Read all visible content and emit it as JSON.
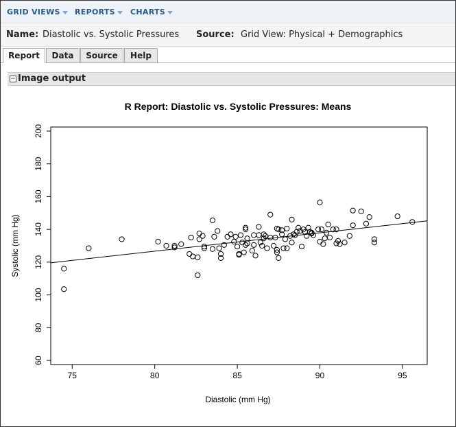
{
  "topnav": {
    "items": [
      {
        "label": "GRID VIEWS"
      },
      {
        "label": "REPORTS"
      },
      {
        "label": "CHARTS"
      }
    ]
  },
  "info": {
    "name_label": "Name:",
    "name_value": "Diastolic vs. Systolic Pressures",
    "source_label": "Source:",
    "source_value": "Grid View: Physical + Demographics"
  },
  "tabs": [
    {
      "label": "Report",
      "active": true
    },
    {
      "label": "Data",
      "active": false
    },
    {
      "label": "Source",
      "active": false
    },
    {
      "label": "Help",
      "active": false
    }
  ],
  "section": {
    "toggle": "−",
    "title": "Image output"
  },
  "chart_data": {
    "type": "scatter",
    "title": "R Report: Diastolic vs. Systolic Pressures: Means",
    "xlabel": "Diastolic (mm Hg)",
    "ylabel": "Systolic (mm Hg)",
    "xlim": [
      73.7,
      96.5
    ],
    "ylim": [
      57.5,
      202.5
    ],
    "xticks": [
      75,
      80,
      85,
      90,
      95
    ],
    "yticks": [
      60,
      80,
      100,
      120,
      140,
      160,
      180,
      200
    ],
    "grid": false,
    "trendline": {
      "x1": 73.7,
      "y1": 119.6,
      "x2": 96.5,
      "y2": 145.2
    },
    "points": [
      [
        74.5,
        116
      ],
      [
        74.5,
        103.5
      ],
      [
        76,
        128.5
      ],
      [
        78,
        134
      ],
      [
        80.2,
        132.5
      ],
      [
        80.7,
        130
      ],
      [
        81.2,
        129
      ],
      [
        81.2,
        130
      ],
      [
        81.6,
        131
      ],
      [
        82.1,
        125
      ],
      [
        82.2,
        135
      ],
      [
        82.3,
        123.5
      ],
      [
        82.6,
        112
      ],
      [
        82.6,
        123
      ],
      [
        82.7,
        137.5
      ],
      [
        82.7,
        134
      ],
      [
        82.9,
        136
      ],
      [
        83,
        129.5
      ],
      [
        83,
        128.5
      ],
      [
        83.5,
        145.5
      ],
      [
        83.5,
        128
      ],
      [
        83.6,
        135.5
      ],
      [
        83.8,
        139
      ],
      [
        83.9,
        128.5
      ],
      [
        84,
        125
      ],
      [
        84,
        122.5
      ],
      [
        84.2,
        130.5
      ],
      [
        84.4,
        135.5
      ],
      [
        84.6,
        137
      ],
      [
        84.8,
        132.5
      ],
      [
        84.9,
        135.5
      ],
      [
        85,
        129.5
      ],
      [
        85.1,
        124.5
      ],
      [
        85.1,
        125
      ],
      [
        85.2,
        136.5
      ],
      [
        85.3,
        132
      ],
      [
        85.4,
        126
      ],
      [
        85.5,
        140
      ],
      [
        85.5,
        141
      ],
      [
        85.5,
        130.5
      ],
      [
        85.6,
        134.5
      ],
      [
        85.6,
        131.5
      ],
      [
        85.9,
        127
      ],
      [
        86,
        136.5
      ],
      [
        86,
        130.5
      ],
      [
        86.1,
        124
      ],
      [
        86.3,
        141.5
      ],
      [
        86.3,
        136.5
      ],
      [
        86.4,
        132
      ],
      [
        86.5,
        130
      ],
      [
        86.6,
        137
      ],
      [
        86.6,
        134.5
      ],
      [
        86.7,
        136
      ],
      [
        86.8,
        128.5
      ],
      [
        87,
        135
      ],
      [
        87,
        149
      ],
      [
        87.2,
        130
      ],
      [
        87.3,
        135
      ],
      [
        87.4,
        140.5
      ],
      [
        87.4,
        127.5
      ],
      [
        87.4,
        126
      ],
      [
        87.5,
        122.5
      ],
      [
        87.5,
        140
      ],
      [
        87.7,
        139.5
      ],
      [
        87.7,
        137
      ],
      [
        87.8,
        128.5
      ],
      [
        87.9,
        134
      ],
      [
        88,
        128.5
      ],
      [
        88,
        140.5
      ],
      [
        88.2,
        136
      ],
      [
        88.3,
        146
      ],
      [
        88.3,
        132
      ],
      [
        88.4,
        137
      ],
      [
        88.5,
        136.5
      ],
      [
        88.6,
        138.5
      ],
      [
        88.7,
        141
      ],
      [
        88.8,
        139
      ],
      [
        88.9,
        129.5
      ],
      [
        89,
        140
      ],
      [
        89.1,
        138.5
      ],
      [
        89.2,
        136
      ],
      [
        89.3,
        141
      ],
      [
        89.4,
        138.5
      ],
      [
        89.5,
        138
      ],
      [
        89.5,
        137.5
      ],
      [
        89.6,
        136.5
      ],
      [
        89.9,
        140
      ],
      [
        90,
        156.5
      ],
      [
        90,
        132.5
      ],
      [
        90.1,
        140
      ],
      [
        90.2,
        131
      ],
      [
        90.3,
        134.5
      ],
      [
        90.4,
        138
      ],
      [
        90.5,
        143
      ],
      [
        90.6,
        135
      ],
      [
        90.8,
        140
      ],
      [
        91,
        140
      ],
      [
        91,
        131.5
      ],
      [
        91.1,
        133
      ],
      [
        91.2,
        131
      ],
      [
        91.5,
        132
      ],
      [
        91.8,
        136
      ],
      [
        92,
        151.5
      ],
      [
        92,
        142.5
      ],
      [
        92.5,
        151
      ],
      [
        92.8,
        143.5
      ],
      [
        93,
        147.5
      ],
      [
        93.3,
        134
      ],
      [
        93.3,
        132
      ],
      [
        94.7,
        148
      ],
      [
        95.6,
        144.5
      ]
    ]
  }
}
